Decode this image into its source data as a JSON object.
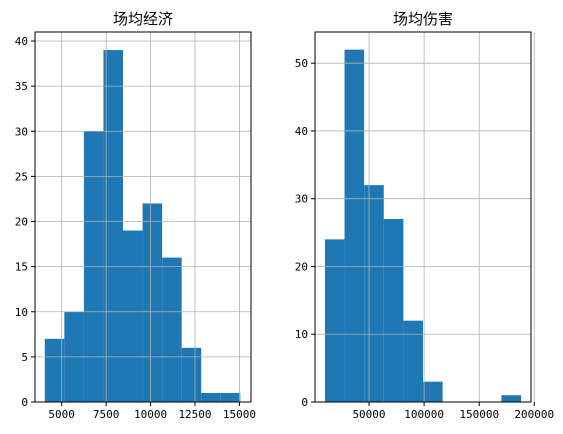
{
  "chart_data": [
    {
      "type": "bar",
      "subtype": "histogram",
      "title": "场均经济",
      "xlabel": "",
      "ylabel": "",
      "bin_edges": [
        4050,
        5150,
        6250,
        7350,
        8450,
        9550,
        10650,
        11750,
        12850,
        13950,
        15050
      ],
      "counts": [
        7,
        10,
        30,
        39,
        19,
        22,
        16,
        6,
        1,
        1
      ],
      "xlim": [
        3500,
        15650
      ],
      "ylim": [
        0,
        41
      ],
      "xticks": [
        5000,
        7500,
        10000,
        12500,
        15000
      ],
      "xtick_labels": [
        "5000",
        "7500",
        "10000",
        "12500",
        "15000"
      ],
      "yticks": [
        0,
        5,
        10,
        15,
        20,
        25,
        30,
        35,
        40
      ],
      "ytick_labels": [
        "0",
        "5",
        "10",
        "15",
        "20",
        "25",
        "30",
        "35",
        "40"
      ],
      "grid": true,
      "color": "#1f77b4"
    },
    {
      "type": "bar",
      "subtype": "histogram",
      "title": "场均伤害",
      "xlabel": "",
      "ylabel": "",
      "bin_edges": [
        10000,
        27800,
        45600,
        63400,
        81200,
        99000,
        116800,
        134600,
        152400,
        170200,
        188000
      ],
      "counts": [
        24,
        52,
        32,
        27,
        12,
        3,
        0,
        0,
        0,
        1
      ],
      "xlim": [
        1000,
        197000
      ],
      "ylim": [
        0,
        54.6
      ],
      "xticks": [
        50000,
        100000,
        150000,
        200000
      ],
      "xtick_labels": [
        "50000",
        "100000",
        "150000",
        "200000"
      ],
      "yticks": [
        0,
        10,
        20,
        30,
        40,
        50
      ],
      "ytick_labels": [
        "0",
        "10",
        "20",
        "30",
        "40",
        "50"
      ],
      "grid": true,
      "color": "#1f77b4"
    }
  ]
}
